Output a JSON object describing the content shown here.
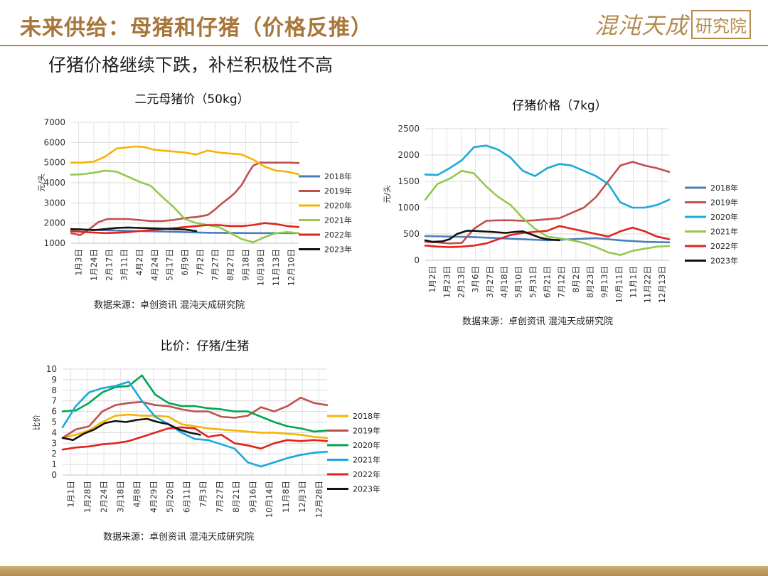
{
  "header": {
    "title": "未来供给：母猪和仔猪（价格反推）",
    "brand_name": "混沌天成",
    "brand_seal": "研究院"
  },
  "subtitle": "仔猪价格继续下跌，补栏积极性不高",
  "chart_data": [
    {
      "type": "line",
      "title": "二元母猪价（50kg）",
      "ylabel": "元/头",
      "xlabel": "",
      "ylim": [
        1000,
        7000
      ],
      "yticks": [
        1000,
        2000,
        3000,
        4000,
        5000,
        6000,
        7000
      ],
      "x_range": [
        0,
        1
      ],
      "xtick_labels": [
        "1月3日",
        "1月24日",
        "2月17日",
        "3月11日",
        "4月2日",
        "4月24日",
        "5月17日",
        "6月9日",
        "7月2日",
        "7月27日",
        "8月27日",
        "9月18日",
        "10月18日",
        "11月13日",
        "12月10日"
      ],
      "grid": true,
      "legend": "right",
      "series": [
        {
          "name": "2018年",
          "color": "#4a7ebb",
          "x": [
            0,
            0.1,
            0.2,
            0.3,
            0.4,
            0.5,
            0.6,
            0.7,
            0.8,
            0.9,
            1.0
          ],
          "y": [
            1700,
            1660,
            1630,
            1600,
            1580,
            1550,
            1520,
            1510,
            1500,
            1500,
            1500
          ]
        },
        {
          "name": "2019年",
          "color": "#c0504d",
          "x": [
            0,
            0.04,
            0.08,
            0.12,
            0.16,
            0.2,
            0.25,
            0.3,
            0.35,
            0.4,
            0.45,
            0.5,
            0.55,
            0.6,
            0.63,
            0.66,
            0.7,
            0.72,
            0.75,
            0.78,
            0.8,
            0.83,
            0.86,
            0.9,
            0.95,
            1.0
          ],
          "y": [
            1500,
            1400,
            1700,
            2050,
            2200,
            2200,
            2200,
            2150,
            2100,
            2100,
            2150,
            2250,
            2300,
            2400,
            2650,
            2950,
            3300,
            3500,
            3900,
            4500,
            4850,
            5000,
            5000,
            5000,
            5000,
            4980
          ]
        },
        {
          "name": "2020年",
          "color": "#f4b400",
          "x": [
            0,
            0.05,
            0.1,
            0.15,
            0.2,
            0.24,
            0.28,
            0.32,
            0.36,
            0.4,
            0.45,
            0.5,
            0.55,
            0.6,
            0.65,
            0.7,
            0.75,
            0.8,
            0.85,
            0.9,
            0.95,
            1.0
          ],
          "y": [
            5000,
            5000,
            5050,
            5300,
            5700,
            5750,
            5800,
            5780,
            5650,
            5600,
            5550,
            5500,
            5400,
            5600,
            5500,
            5450,
            5400,
            5150,
            4800,
            4600,
            4550,
            4420
          ]
        },
        {
          "name": "2021年",
          "color": "#92c94e",
          "x": [
            0,
            0.05,
            0.1,
            0.15,
            0.2,
            0.25,
            0.3,
            0.35,
            0.4,
            0.45,
            0.5,
            0.55,
            0.6,
            0.65,
            0.7,
            0.75,
            0.8,
            0.85,
            0.9,
            0.95,
            1.0
          ],
          "y": [
            4400,
            4420,
            4500,
            4600,
            4550,
            4300,
            4050,
            3850,
            3300,
            2800,
            2200,
            2000,
            1900,
            1800,
            1500,
            1200,
            1050,
            1300,
            1500,
            1550,
            1500
          ]
        },
        {
          "name": "2022年",
          "color": "#e0241b",
          "x": [
            0,
            0.05,
            0.1,
            0.15,
            0.2,
            0.25,
            0.3,
            0.35,
            0.4,
            0.45,
            0.5,
            0.55,
            0.6,
            0.65,
            0.7,
            0.75,
            0.8,
            0.85,
            0.9,
            0.95,
            1.0
          ],
          "y": [
            1600,
            1560,
            1530,
            1500,
            1520,
            1550,
            1600,
            1650,
            1700,
            1750,
            1800,
            1850,
            1900,
            1900,
            1850,
            1850,
            1900,
            2000,
            1950,
            1850,
            1800
          ]
        },
        {
          "name": "2023年",
          "color": "#111111",
          "x": [
            0,
            0.05,
            0.1,
            0.15,
            0.2,
            0.25,
            0.3,
            0.35,
            0.4,
            0.45,
            0.5,
            0.55
          ],
          "y": [
            1700,
            1680,
            1650,
            1700,
            1760,
            1780,
            1760,
            1740,
            1720,
            1700,
            1680,
            1600
          ]
        }
      ],
      "source": "数据来源：卓创资讯 混沌天成研究院"
    },
    {
      "type": "line",
      "title": "仔猪价格（7kg）",
      "ylabel": "元/头",
      "xlabel": "",
      "ylim": [
        0,
        2500
      ],
      "yticks": [
        0,
        500,
        1000,
        1500,
        2000,
        2500
      ],
      "x_range": [
        0,
        1
      ],
      "xtick_labels": [
        "1月2日",
        "1月23日",
        "2月13日",
        "3月6日",
        "3月27日",
        "4月18日",
        "5月10日",
        "5月31日",
        "6月21日",
        "7月12日",
        "8月2日",
        "8月23日",
        "9月13日",
        "10月11日",
        "11月1日",
        "11月22日",
        "12月13日"
      ],
      "grid": true,
      "legend": "right",
      "series": [
        {
          "name": "2018年",
          "color": "#4a7ebb",
          "x": [
            0,
            0.1,
            0.2,
            0.3,
            0.4,
            0.5,
            0.6,
            0.7,
            0.8,
            0.9,
            1.0
          ],
          "y": [
            460,
            450,
            440,
            420,
            400,
            380,
            400,
            420,
            380,
            350,
            340
          ]
        },
        {
          "name": "2019年",
          "color": "#c0504d",
          "x": [
            0,
            0.05,
            0.1,
            0.15,
            0.2,
            0.25,
            0.3,
            0.35,
            0.4,
            0.45,
            0.5,
            0.55,
            0.6,
            0.65,
            0.7,
            0.75,
            0.8,
            0.85,
            0.9,
            0.95,
            1.0
          ],
          "y": [
            350,
            340,
            320,
            330,
            600,
            750,
            760,
            760,
            750,
            760,
            780,
            800,
            900,
            1000,
            1200,
            1500,
            1800,
            1870,
            1800,
            1750,
            1680
          ]
        },
        {
          "name": "2020年",
          "color": "#1aa9db",
          "x": [
            0,
            0.05,
            0.1,
            0.15,
            0.2,
            0.25,
            0.3,
            0.35,
            0.4,
            0.45,
            0.5,
            0.55,
            0.6,
            0.65,
            0.7,
            0.75,
            0.8,
            0.85,
            0.9,
            0.95,
            1.0
          ],
          "y": [
            1630,
            1620,
            1750,
            1900,
            2150,
            2180,
            2100,
            1950,
            1700,
            1600,
            1750,
            1830,
            1800,
            1700,
            1600,
            1450,
            1100,
            1000,
            1000,
            1050,
            1150
          ]
        },
        {
          "name": "2021年",
          "color": "#92c94e",
          "x": [
            0,
            0.05,
            0.1,
            0.15,
            0.2,
            0.25,
            0.3,
            0.35,
            0.4,
            0.45,
            0.5,
            0.55,
            0.6,
            0.65,
            0.7,
            0.75,
            0.8,
            0.85,
            0.9,
            0.95,
            1.0
          ],
          "y": [
            1150,
            1450,
            1550,
            1700,
            1650,
            1400,
            1200,
            1050,
            800,
            600,
            450,
            420,
            380,
            330,
            250,
            150,
            100,
            180,
            220,
            260,
            270
          ]
        },
        {
          "name": "2022年",
          "color": "#e0241b",
          "x": [
            0,
            0.05,
            0.1,
            0.15,
            0.2,
            0.25,
            0.3,
            0.35,
            0.4,
            0.45,
            0.5,
            0.55,
            0.6,
            0.65,
            0.7,
            0.75,
            0.8,
            0.85,
            0.9,
            0.95,
            1.0
          ],
          "y": [
            280,
            260,
            250,
            260,
            280,
            320,
            400,
            480,
            520,
            540,
            560,
            650,
            600,
            550,
            500,
            450,
            550,
            620,
            550,
            450,
            400
          ]
        },
        {
          "name": "2023年",
          "color": "#111111",
          "x": [
            0,
            0.03,
            0.07,
            0.1,
            0.13,
            0.17,
            0.2,
            0.23,
            0.27,
            0.3,
            0.33,
            0.37,
            0.4,
            0.43,
            0.47,
            0.5,
            0.55
          ],
          "y": [
            380,
            350,
            360,
            400,
            500,
            560,
            560,
            550,
            540,
            530,
            520,
            540,
            550,
            500,
            430,
            400,
            380
          ]
        }
      ],
      "source": "数据来源：卓创资讯 混沌天成研究院"
    },
    {
      "type": "line",
      "title": "比价：仔猪/生猪",
      "ylabel": "比价",
      "xlabel": "",
      "ylim": [
        0,
        10
      ],
      "yticks": [
        0,
        1,
        2,
        3,
        4,
        5,
        6,
        7,
        8,
        9,
        10
      ],
      "x_range": [
        0,
        1
      ],
      "xtick_labels": [
        "1月1日",
        "1月28日",
        "2月24日",
        "3月18日",
        "4月8日",
        "4月29日",
        "5月20日",
        "6月11日",
        "7月3日",
        "7月27日",
        "8月21日",
        "9月16日",
        "10月14日",
        "11月8日",
        "12月3日",
        "12月28日"
      ],
      "grid": true,
      "legend": "right",
      "series": [
        {
          "name": "2018年",
          "color": "#f4b400",
          "x": [
            0,
            0.05,
            0.1,
            0.15,
            0.2,
            0.25,
            0.3,
            0.35,
            0.4,
            0.45,
            0.5,
            0.55,
            0.6,
            0.65,
            0.7,
            0.75,
            0.8,
            0.85,
            0.9,
            0.95,
            1.0
          ],
          "y": [
            3.5,
            3.8,
            4.2,
            5.0,
            5.6,
            5.7,
            5.6,
            5.6,
            5.5,
            4.8,
            4.6,
            4.4,
            4.3,
            4.2,
            4.1,
            4.0,
            4.0,
            3.9,
            3.8,
            3.6,
            3.5
          ]
        },
        {
          "name": "2019年",
          "color": "#c0504d",
          "x": [
            0,
            0.05,
            0.1,
            0.15,
            0.2,
            0.25,
            0.3,
            0.35,
            0.4,
            0.45,
            0.5,
            0.55,
            0.6,
            0.65,
            0.7,
            0.75,
            0.8,
            0.85,
            0.9,
            0.95,
            1.0
          ],
          "y": [
            3.5,
            4.3,
            4.6,
            6.0,
            6.6,
            6.8,
            6.9,
            6.6,
            6.5,
            6.2,
            6.0,
            6.0,
            5.5,
            5.4,
            5.6,
            6.4,
            6.0,
            6.5,
            7.3,
            6.8,
            6.6
          ]
        },
        {
          "name": "2020年",
          "color": "#00a650",
          "x": [
            0,
            0.05,
            0.1,
            0.15,
            0.2,
            0.25,
            0.3,
            0.35,
            0.4,
            0.45,
            0.5,
            0.55,
            0.6,
            0.65,
            0.7,
            0.75,
            0.8,
            0.85,
            0.9,
            0.95,
            1.0
          ],
          "y": [
            6.0,
            6.1,
            6.8,
            7.8,
            8.3,
            8.4,
            9.4,
            7.6,
            6.8,
            6.5,
            6.5,
            6.3,
            6.2,
            6.0,
            6.0,
            5.5,
            5.0,
            4.6,
            4.4,
            4.1,
            4.2
          ]
        },
        {
          "name": "2021年",
          "color": "#1aa9db",
          "x": [
            0,
            0.05,
            0.1,
            0.15,
            0.2,
            0.25,
            0.3,
            0.35,
            0.4,
            0.45,
            0.5,
            0.55,
            0.6,
            0.65,
            0.7,
            0.75,
            0.8,
            0.85,
            0.9,
            0.95,
            1.0
          ],
          "y": [
            4.5,
            6.5,
            7.8,
            8.2,
            8.4,
            8.8,
            7.0,
            5.5,
            4.8,
            4.0,
            3.4,
            3.3,
            2.9,
            2.5,
            1.2,
            0.8,
            1.2,
            1.6,
            1.9,
            2.1,
            2.2
          ]
        },
        {
          "name": "2022年",
          "color": "#e0241b",
          "x": [
            0,
            0.05,
            0.1,
            0.15,
            0.2,
            0.25,
            0.3,
            0.35,
            0.4,
            0.45,
            0.5,
            0.55,
            0.6,
            0.65,
            0.7,
            0.75,
            0.8,
            0.85,
            0.9,
            0.95,
            1.0
          ],
          "y": [
            2.4,
            2.6,
            2.7,
            2.9,
            3.0,
            3.2,
            3.6,
            4.0,
            4.4,
            4.5,
            4.4,
            3.6,
            3.8,
            3.0,
            2.8,
            2.5,
            3.0,
            3.3,
            3.2,
            3.3,
            3.2
          ]
        },
        {
          "name": "2023年",
          "color": "#111111",
          "x": [
            0,
            0.04,
            0.08,
            0.12,
            0.16,
            0.2,
            0.24,
            0.28,
            0.32,
            0.36,
            0.4,
            0.44,
            0.48,
            0.52
          ],
          "y": [
            3.5,
            3.3,
            3.9,
            4.3,
            4.9,
            5.1,
            5.0,
            5.2,
            5.3,
            5.0,
            4.8,
            4.3,
            4.0,
            3.8
          ]
        }
      ],
      "source": "数据来源：卓创资讯 混沌天成研究院"
    }
  ]
}
